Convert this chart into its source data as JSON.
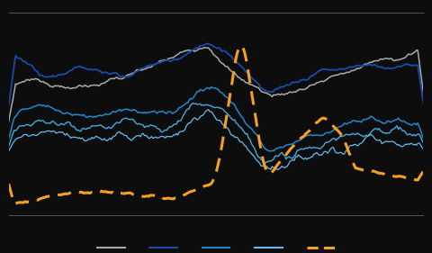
{
  "background_color": "#0d0d0d",
  "grid_color": "#555566",
  "line_colors": {
    "gray": "#aaaaaa",
    "dark_blue": "#1a4aaa",
    "medium_blue": "#2288cc",
    "light_blue": "#44aadd",
    "light_blue2": "#66bbee",
    "orange_dashed": "#f5a020"
  },
  "legend_items": [
    {
      "color": "#aaaaaa",
      "style": "solid",
      "lw": 1.5
    },
    {
      "color": "#1a4aaa",
      "style": "solid",
      "lw": 1.5
    },
    {
      "color": "#2288cc",
      "style": "solid",
      "lw": 1.5
    },
    {
      "color": "#66bbee",
      "style": "solid",
      "lw": 1.5
    },
    {
      "color": "#f5a020",
      "style": "dashed",
      "lw": 2.2
    }
  ],
  "n_points": 300,
  "ylim": [
    -2.5,
    6.5
  ],
  "xlim": [
    0,
    299
  ],
  "n_gridlines": 9
}
